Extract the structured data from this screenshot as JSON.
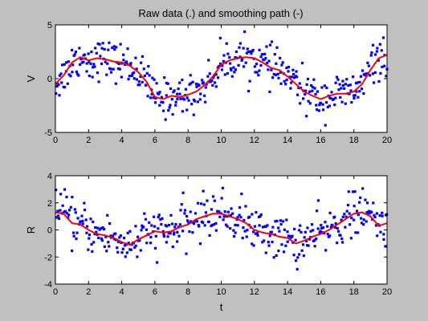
{
  "title": "Raw data (.) and smoothing path (-)",
  "colors": {
    "background": "#c0c0c0",
    "axes_bg": "#ffffff",
    "points": "#0000ff",
    "smooth": "#ff0000"
  },
  "chart_data": [
    {
      "type": "scatter",
      "ylabel": "V",
      "xlabel": "",
      "xlim": [
        0,
        20
      ],
      "ylim": [
        -5,
        5
      ],
      "xticks": [
        0,
        2,
        4,
        6,
        8,
        10,
        12,
        14,
        16,
        18,
        20
      ],
      "yticks": [
        -5,
        0,
        5
      ],
      "noise_sd": 0.9,
      "raw_points_count": 400,
      "smooth": {
        "x": [
          0,
          0.5,
          1,
          1.5,
          2,
          2.5,
          3,
          3.5,
          4,
          4.5,
          5,
          5.5,
          6,
          6.5,
          7,
          7.5,
          8,
          8.5,
          9,
          9.5,
          10,
          10.5,
          11,
          11.5,
          12,
          12.5,
          13,
          13.5,
          14,
          14.5,
          15,
          15.5,
          16,
          16.5,
          17,
          17.5,
          18,
          18.5,
          19,
          19.5,
          20
        ],
        "y": [
          -0.5,
          0.3,
          1.5,
          2.0,
          1.7,
          1.9,
          1.8,
          1.6,
          1.5,
          1.2,
          0.6,
          -0.3,
          -1.7,
          -1.9,
          -1.6,
          -1.7,
          -1.5,
          -1.2,
          -0.6,
          0.2,
          1.3,
          1.7,
          1.9,
          2.0,
          1.9,
          1.5,
          1.0,
          0.8,
          0.2,
          -0.5,
          -1.2,
          -1.6,
          -1.9,
          -1.6,
          -1.4,
          -1.4,
          -1.2,
          -0.5,
          0.8,
          1.9,
          2.2
        ]
      }
    },
    {
      "type": "scatter",
      "ylabel": "R",
      "xlabel": "t",
      "xlim": [
        0,
        20
      ],
      "ylim": [
        -4,
        4
      ],
      "xticks": [
        0,
        2,
        4,
        6,
        8,
        10,
        12,
        14,
        16,
        18,
        20
      ],
      "yticks": [
        -4,
        -2,
        0,
        2,
        4
      ],
      "noise_sd": 0.8,
      "raw_points_count": 400,
      "smooth": {
        "x": [
          0,
          0.5,
          1,
          1.5,
          2,
          2.5,
          3,
          3.5,
          4,
          4.5,
          5,
          5.5,
          6,
          6.5,
          7,
          7.5,
          8,
          8.5,
          9,
          9.5,
          10,
          10.5,
          11,
          11.5,
          12,
          12.5,
          13,
          13.5,
          14,
          14.5,
          15,
          15.5,
          16,
          16.5,
          17,
          17.5,
          18,
          18.5,
          19,
          19.5,
          20
        ],
        "y": [
          1.3,
          1.2,
          0.5,
          0.4,
          0.0,
          -0.3,
          -0.4,
          -0.6,
          -0.9,
          -1.1,
          -0.7,
          -0.4,
          -0.1,
          -0.2,
          -0.1,
          0.2,
          0.4,
          0.8,
          1.0,
          1.2,
          1.2,
          1.0,
          0.8,
          0.5,
          0.0,
          -0.2,
          -0.3,
          -0.5,
          -0.6,
          -1.0,
          -0.8,
          -0.5,
          -0.3,
          0.0,
          0.4,
          0.8,
          1.2,
          1.3,
          1.0,
          0.3,
          0.5
        ]
      }
    }
  ]
}
